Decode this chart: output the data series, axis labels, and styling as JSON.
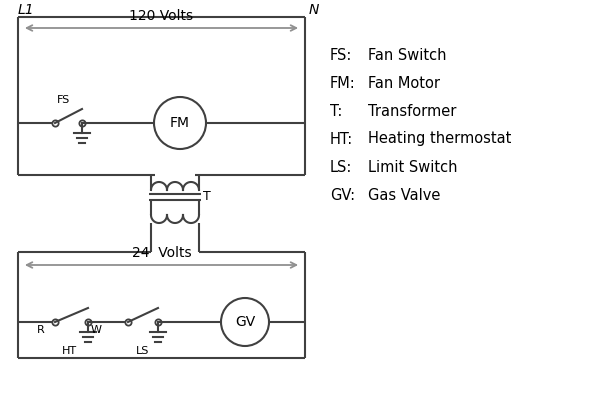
{
  "bg_color": "#ffffff",
  "line_color": "#404040",
  "arrow_color": "#909090",
  "text_color": "#000000",
  "lw": 1.5,
  "legend": [
    [
      "FS:",
      "Fan Switch"
    ],
    [
      "FM:",
      " Fan Motor"
    ],
    [
      "T:",
      "    Transformer"
    ],
    [
      "HT:",
      "  Heating thermostat"
    ],
    [
      "LS:",
      "  Limit Switch"
    ],
    [
      "GV:",
      "  Gas Valve"
    ]
  ],
  "title_L1": "L1",
  "title_N": "N",
  "volts120": "120 Volts",
  "volts24": "24  Volts",
  "label_T": "T",
  "label_R": "R",
  "label_W": "W",
  "label_HT": "HT",
  "label_LS": "LS",
  "label_FS": "FS",
  "label_FM": "FM",
  "label_GV": "GV"
}
